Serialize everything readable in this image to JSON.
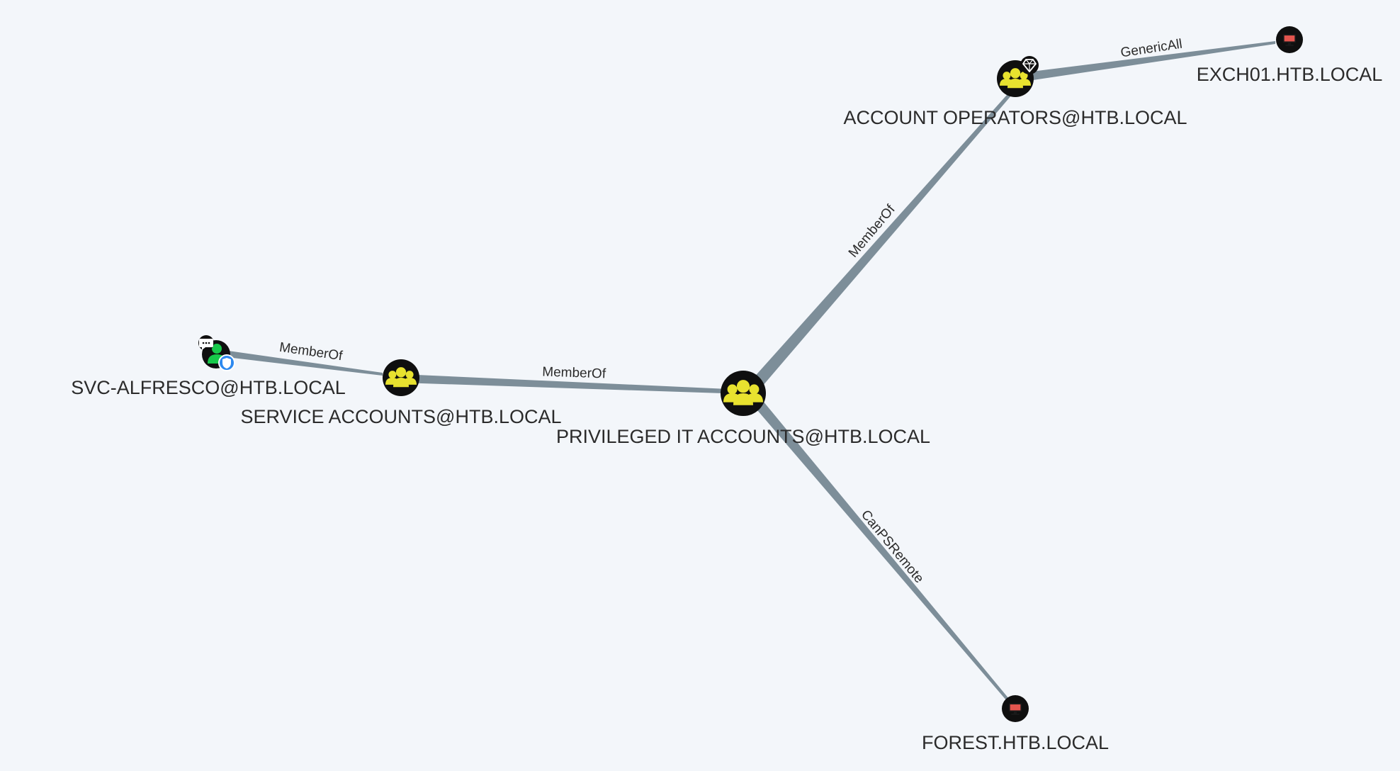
{
  "colors": {
    "background": "#f3f6fa",
    "edge": "#7d8e99",
    "group_fill": "#e8e22f",
    "node_dark": "#0f0f0f",
    "user_fill": "#17c94a",
    "computer_fill": "#e3554e",
    "owned_badge": "#2d89ef"
  },
  "nodes": {
    "exch01": {
      "label": "EXCH01.HTB.LOCAL",
      "type": "computer",
      "icon": "computer-icon"
    },
    "account_operators": {
      "label": "ACCOUNT OPERATORS@HTB.LOCAL",
      "type": "group",
      "icon": "group-icon",
      "badge": "high-value-gem-icon"
    },
    "svc_alfresco": {
      "label": "SVC-ALFRESCO@HTB.LOCAL",
      "type": "user",
      "icon": "user-icon",
      "badges": [
        "chat-bubble-icon",
        "owned-shield-icon"
      ]
    },
    "service_accounts": {
      "label": "SERVICE ACCOUNTS@HTB.LOCAL",
      "type": "group",
      "icon": "group-icon"
    },
    "privileged_it": {
      "label": "PRIVILEGED IT ACCOUNTS@HTB.LOCAL",
      "type": "group",
      "icon": "group-icon"
    },
    "forest": {
      "label": "FOREST.HTB.LOCAL",
      "type": "computer",
      "icon": "computer-icon"
    }
  },
  "edges": {
    "svc_to_service": {
      "label": "MemberOf",
      "from": "SVC-ALFRESCO@HTB.LOCAL",
      "to": "SERVICE ACCOUNTS@HTB.LOCAL"
    },
    "service_to_privileged": {
      "label": "MemberOf",
      "from": "SERVICE ACCOUNTS@HTB.LOCAL",
      "to": "PRIVILEGED IT ACCOUNTS@HTB.LOCAL"
    },
    "privileged_to_account_ops": {
      "label": "MemberOf",
      "from": "PRIVILEGED IT ACCOUNTS@HTB.LOCAL",
      "to": "ACCOUNT OPERATORS@HTB.LOCAL"
    },
    "account_ops_to_exch01": {
      "label": "GenericAll",
      "from": "ACCOUNT OPERATORS@HTB.LOCAL",
      "to": "EXCH01.HTB.LOCAL"
    },
    "privileged_to_forest": {
      "label": "CanPSRemote",
      "from": "PRIVILEGED IT ACCOUNTS@HTB.LOCAL",
      "to": "FOREST.HTB.LOCAL"
    }
  }
}
